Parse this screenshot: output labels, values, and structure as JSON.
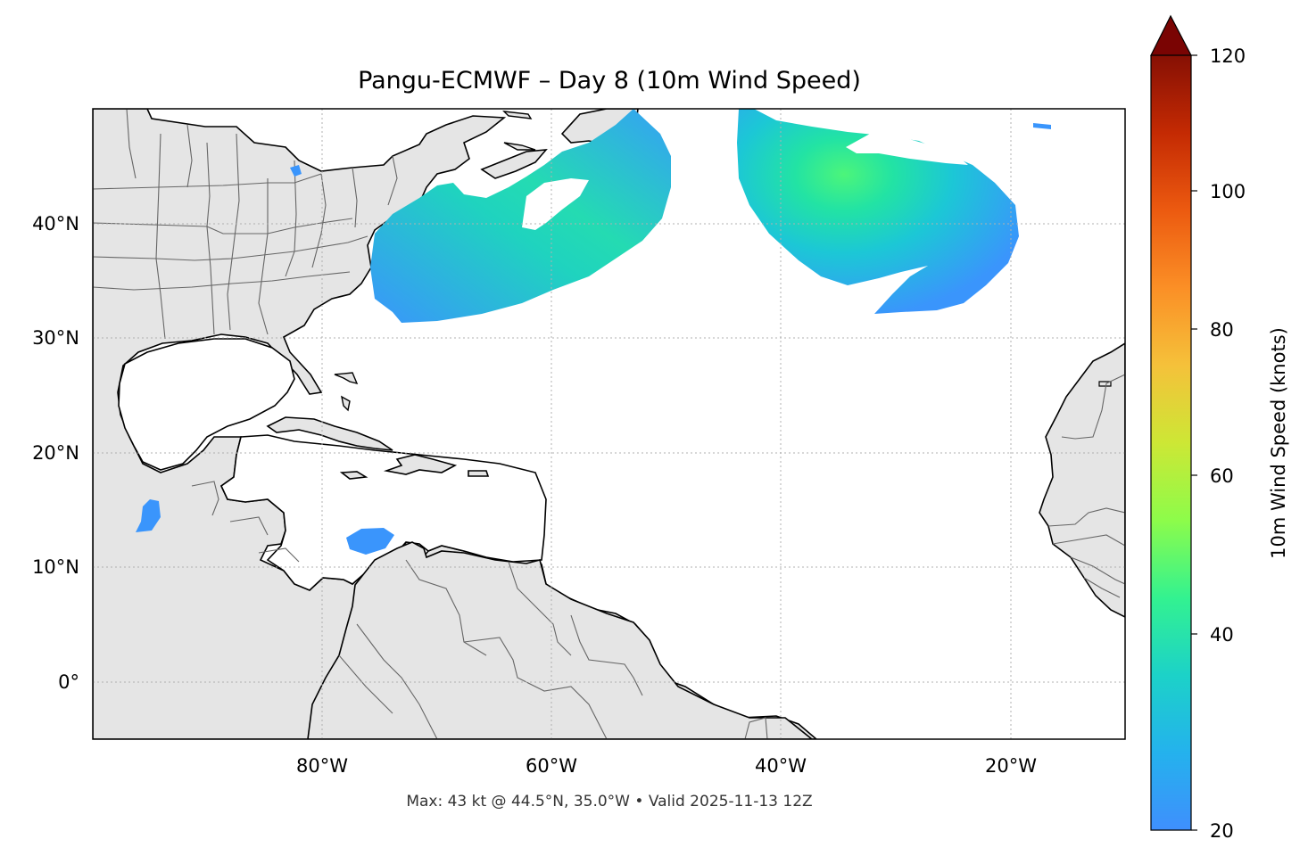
{
  "title": "Pangu-ECMWF – Day 8 (10m Wind Speed)",
  "footer": "Max: 43 kt @ 44.5°N, 35.0°W • Valid 2025-11-13 12Z",
  "map": {
    "lon_range": [
      -100,
      -10
    ],
    "lat_range": [
      -5,
      50
    ],
    "lon_ticks": [
      "80°W",
      "60°W",
      "40°W",
      "20°W"
    ],
    "lat_ticks": [
      "40°N",
      "30°N",
      "20°N",
      "10°N",
      "0°"
    ],
    "gridlines": true,
    "land_color": "#e5e5e5",
    "ocean_color": "#ffffff"
  },
  "colorbar": {
    "label": "10m Wind Speed (knots)",
    "ticks": [
      "20",
      "40",
      "60",
      "80",
      "100",
      "120"
    ],
    "range": [
      20,
      120
    ],
    "extend": "max",
    "colormap": "turbo",
    "colors": [
      "#3f8ffd",
      "#1cc8d6",
      "#28ef9a",
      "#a8fc3c",
      "#f1c93a",
      "#fb7e21",
      "#d93806",
      "#7a0403"
    ]
  },
  "wind_field": {
    "max_speed_kt": 43,
    "max_location": "44.5°N, 35.0°W",
    "features": [
      "Swath of 25–40 kt winds off the US East Coast and Canadian Maritimes, roughly 33–50°N, 76–50°W",
      "Cyclone near 44.5°N 35°W with peak 43 kt winds, surrounded by 25–40 kt winds from about 32–50°N, 45–22°W",
      "Small 25 kt patch near 12°N 77°W in the southern Caribbean",
      "Small 25 kt patch near 14°N 94°W in the eastern Pacific"
    ]
  }
}
